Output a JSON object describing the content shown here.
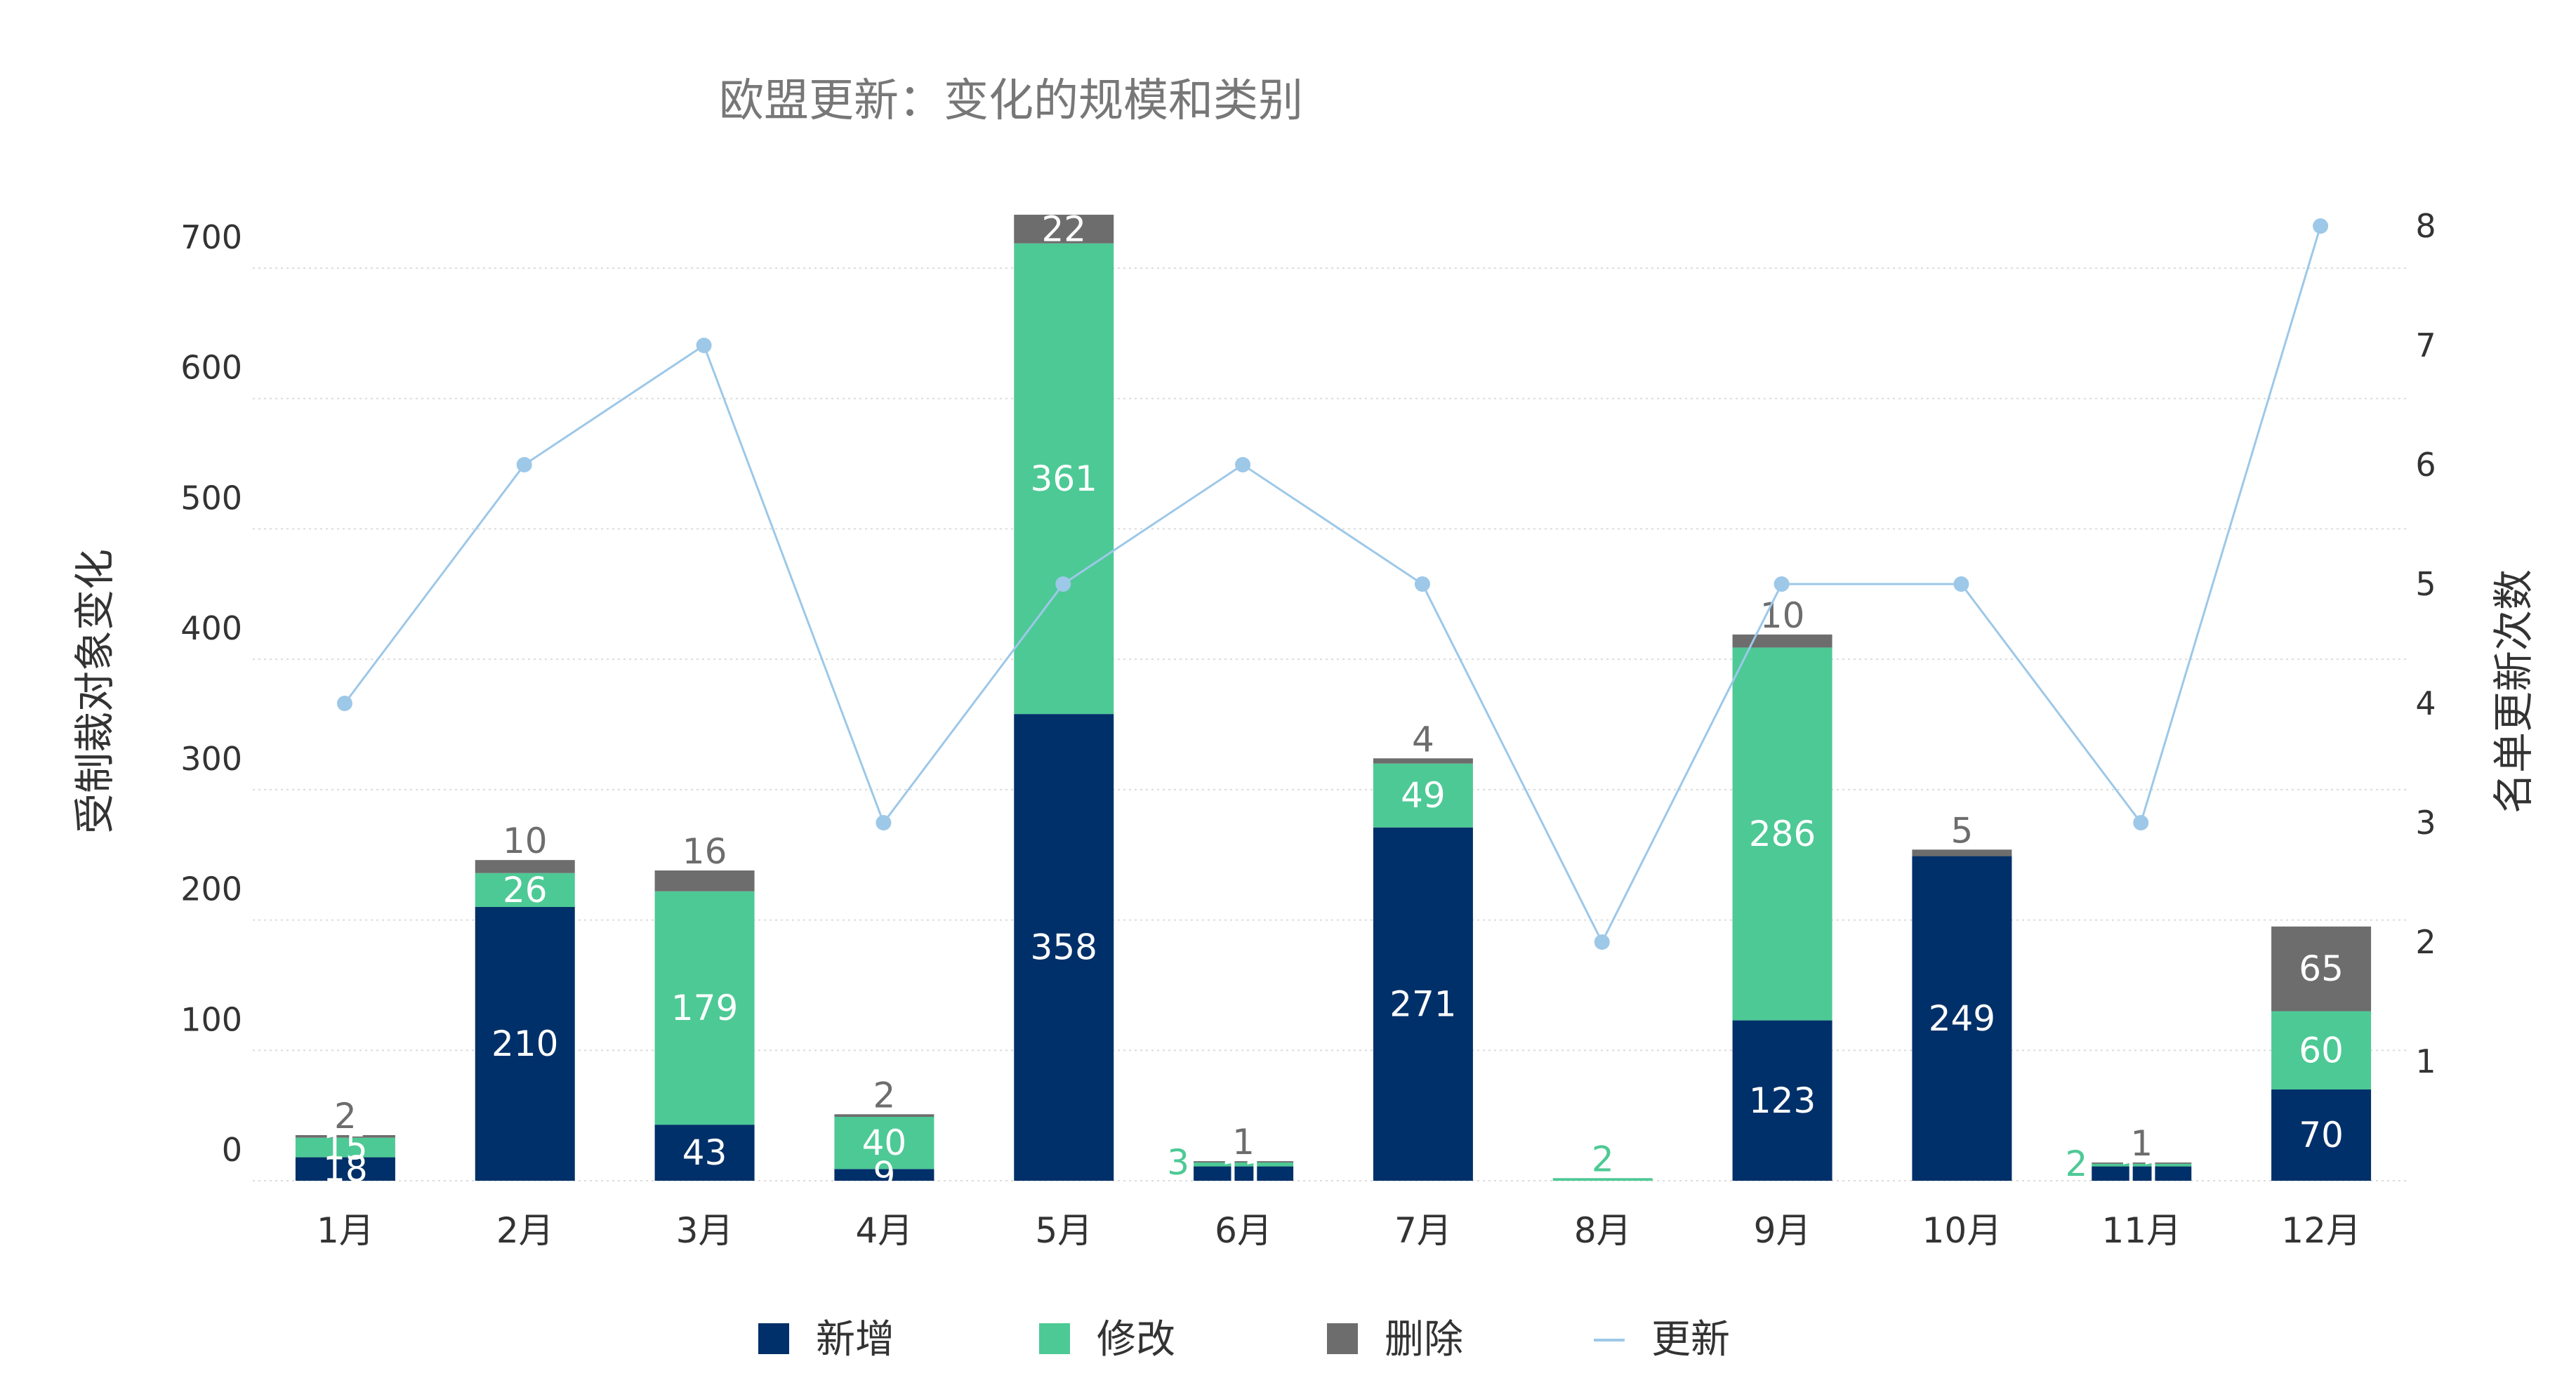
{
  "chart_data": {
    "type": "bar",
    "stacked": true,
    "title": "欧盟更新：变化的规模和类别",
    "categories": [
      "1月",
      "2月",
      "3月",
      "4月",
      "5月",
      "6月",
      "7月",
      "8月",
      "9月",
      "10月",
      "11月",
      "12月"
    ],
    "ylabel": "受制裁对象变化",
    "ylabel_right": "名单更新次数",
    "ylim": [
      0,
      700
    ],
    "ylim_right": [
      0,
      8
    ],
    "yticks": [
      "0",
      "100",
      "200",
      "300",
      "400",
      "500",
      "600",
      "700"
    ],
    "yticks_right": [
      "1",
      "2",
      "3",
      "4",
      "5",
      "6",
      "7",
      "8"
    ],
    "grid": true,
    "legend_position": "bottom",
    "series": [
      {
        "name": "新增",
        "kind": "bar",
        "color": "#003069",
        "values": [
          18,
          210,
          43,
          9,
          358,
          11,
          271,
          0,
          123,
          249,
          11,
          70
        ],
        "labels": [
          "18",
          "210",
          "43",
          "9",
          "358",
          "11",
          "271",
          "",
          "123",
          "249",
          "11",
          "70"
        ]
      },
      {
        "name": "修改",
        "kind": "bar",
        "color": "#4dc995",
        "values": [
          15,
          26,
          179,
          40,
          361,
          3,
          49,
          2,
          286,
          0,
          2,
          60
        ],
        "labels": [
          "15",
          "26",
          "179",
          "40",
          "361",
          "3",
          "49",
          "2",
          "286",
          "",
          "2",
          "60"
        ]
      },
      {
        "name": "删除",
        "kind": "bar",
        "color": "#6d6d6d",
        "values": [
          2,
          10,
          16,
          2,
          22,
          1,
          4,
          0,
          10,
          5,
          1,
          65
        ],
        "labels": [
          "2",
          "10",
          "16",
          "2",
          "22",
          "1",
          "4",
          "",
          "10",
          "5",
          "1",
          "65"
        ]
      },
      {
        "name": "更新",
        "kind": "line",
        "axis": "right",
        "color": "#9dc8e8",
        "values": [
          4,
          6,
          7,
          3,
          5,
          6,
          5,
          2,
          5,
          5,
          3,
          8
        ]
      }
    ]
  }
}
